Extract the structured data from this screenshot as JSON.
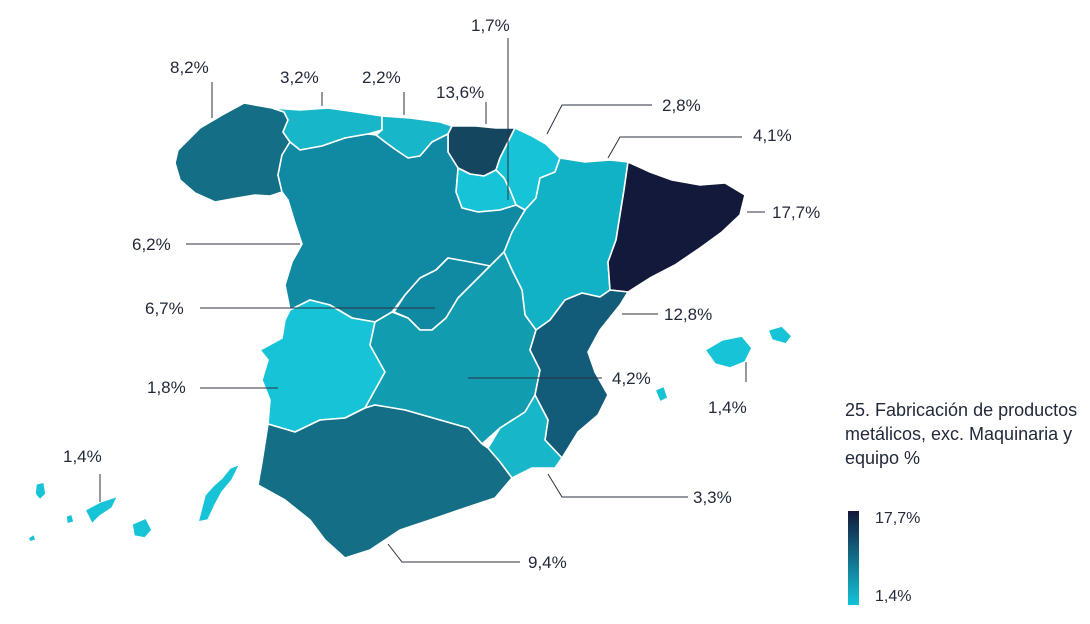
{
  "legend": {
    "title": "25. Fabricación de productos metálicos, exc. Maquinaria y equipo %",
    "max_label": "17,7%",
    "min_label": "1,4%",
    "color_max": "#13193a",
    "color_min": "#12c4d8"
  },
  "regions": [
    {
      "id": "galicia",
      "value_label": "8,2%",
      "color": "#136e86"
    },
    {
      "id": "asturias",
      "value_label": "3,2%",
      "color": "#17b6c9"
    },
    {
      "id": "cantabria",
      "value_label": "2,2%",
      "color": "#17b6c9"
    },
    {
      "id": "pais-vasco",
      "value_label": "13,6%",
      "color": "#14465f"
    },
    {
      "id": "la-rioja",
      "value_label": "1,7%",
      "color": "#17c3d6"
    },
    {
      "id": "navarra",
      "value_label": "2,8%",
      "color": "#17c3d6"
    },
    {
      "id": "aragon",
      "value_label": "4,1%",
      "color": "#12b2c6"
    },
    {
      "id": "cataluna",
      "value_label": "17,7%",
      "color": "#13193a"
    },
    {
      "id": "castilla-y-leon",
      "value_label": "6,2%",
      "color": "#1089a2"
    },
    {
      "id": "madrid",
      "value_label": "6,7%",
      "color": "#1089a2"
    },
    {
      "id": "comunidad-valenciana",
      "value_label": "12,8%",
      "color": "#135c79"
    },
    {
      "id": "castilla-la-mancha",
      "value_label": "4,2%",
      "color": "#119caf"
    },
    {
      "id": "baleares",
      "value_label": "1,4%",
      "color": "#17c3d6"
    },
    {
      "id": "extremadura",
      "value_label": "1,8%",
      "color": "#17c3d6"
    },
    {
      "id": "murcia",
      "value_label": "3,3%",
      "color": "#17b6c9"
    },
    {
      "id": "andalucia",
      "value_label": "9,4%",
      "color": "#136e86"
    },
    {
      "id": "canarias",
      "value_label": "1,4%",
      "color": "#17c3d6"
    }
  ]
}
